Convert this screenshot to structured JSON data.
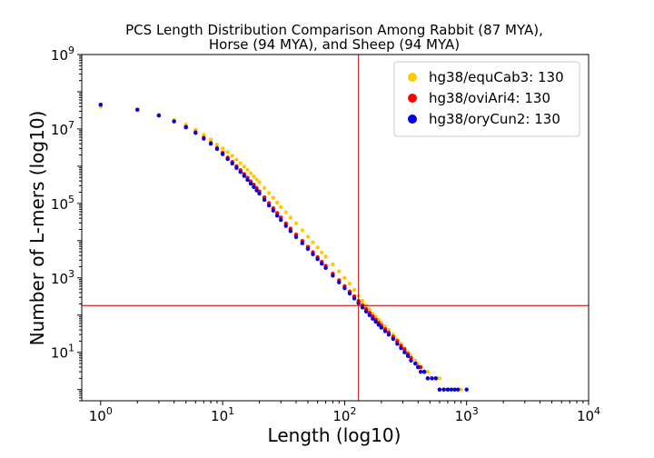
{
  "chart_data": {
    "type": "scatter",
    "title": [
      "PCS Length Distribution Comparison Among Rabbit (87 MYA),",
      "Horse (94 MYA), and Sheep (94 MYA)"
    ],
    "xlabel": "Length (log10)",
    "ylabel": "Number of L-mers (log10)",
    "x_scale": "log",
    "y_scale": "log",
    "xlim": [
      0.7,
      10000
    ],
    "ylim": [
      0.5,
      1000000000
    ],
    "x_ticks": [
      {
        "value": 1,
        "base": "10",
        "exp": "0"
      },
      {
        "value": 10,
        "base": "10",
        "exp": "1"
      },
      {
        "value": 100,
        "base": "10",
        "exp": "2"
      },
      {
        "value": 1000,
        "base": "10",
        "exp": "3"
      },
      {
        "value": 10000,
        "base": "10",
        "exp": "4"
      }
    ],
    "y_ticks": [
      {
        "value": 10,
        "base": "10",
        "exp": "1"
      },
      {
        "value": 1000,
        "base": "10",
        "exp": "3"
      },
      {
        "value": 100000,
        "base": "10",
        "exp": "5"
      },
      {
        "value": 10000000,
        "base": "10",
        "exp": "7"
      },
      {
        "value": 1000000000,
        "base": "10",
        "exp": "9"
      }
    ],
    "reference_lines": {
      "vertical_x": 130,
      "horizontal_y": 180,
      "color": "#b00000"
    },
    "legend_position": "top-right",
    "series": [
      {
        "name": "hg38/equCab3: 130",
        "color": "#ffcc00",
        "points": [
          [
            1,
            40000000
          ],
          [
            2,
            33000000
          ],
          [
            3,
            24000000
          ],
          [
            4,
            17500000
          ],
          [
            5,
            13000000
          ],
          [
            6,
            9500000
          ],
          [
            7,
            7000000
          ],
          [
            8,
            5200000
          ],
          [
            9,
            3800000
          ],
          [
            10,
            3000000
          ],
          [
            11,
            2400000
          ],
          [
            12,
            1900000
          ],
          [
            13,
            1500000
          ],
          [
            14,
            1200000
          ],
          [
            15,
            980000
          ],
          [
            16,
            800000
          ],
          [
            17,
            650000
          ],
          [
            18,
            530000
          ],
          [
            19,
            440000
          ],
          [
            20,
            370000
          ],
          [
            22,
            260000
          ],
          [
            24,
            190000
          ],
          [
            26,
            140000
          ],
          [
            28,
            105000
          ],
          [
            30,
            80000
          ],
          [
            33,
            58000
          ],
          [
            36,
            42000
          ],
          [
            40,
            29000
          ],
          [
            45,
            19000
          ],
          [
            50,
            12800
          ],
          [
            55,
            9000
          ],
          [
            60,
            6500
          ],
          [
            65,
            4800
          ],
          [
            70,
            3700
          ],
          [
            80,
            2300
          ],
          [
            90,
            1500
          ],
          [
            100,
            1000
          ],
          [
            110,
            700
          ],
          [
            120,
            480
          ],
          [
            130,
            330
          ],
          [
            140,
            240
          ],
          [
            150,
            180
          ],
          [
            160,
            140
          ],
          [
            170,
            110
          ],
          [
            180,
            90
          ],
          [
            190,
            75
          ],
          [
            200,
            62
          ],
          [
            215,
            50
          ],
          [
            230,
            40
          ],
          [
            250,
            30
          ],
          [
            270,
            22
          ],
          [
            290,
            17
          ],
          [
            310,
            13
          ],
          [
            330,
            10
          ],
          [
            350,
            8
          ],
          [
            380,
            6
          ],
          [
            400,
            5
          ],
          [
            420,
            4
          ],
          [
            450,
            3
          ],
          [
            480,
            3
          ],
          [
            520,
            2
          ],
          [
            560,
            2
          ],
          [
            600,
            2
          ],
          [
            650,
            1
          ],
          [
            700,
            1
          ],
          [
            750,
            1
          ],
          [
            800,
            1
          ],
          [
            900,
            1
          ]
        ]
      },
      {
        "name": "hg38/oviAri4: 130",
        "color": "#ff0000",
        "points": [
          [
            1,
            45000000
          ],
          [
            2,
            33000000
          ],
          [
            3,
            23000000
          ],
          [
            4,
            16000000
          ],
          [
            5,
            11500000
          ],
          [
            6,
            8200000
          ],
          [
            7,
            5800000
          ],
          [
            8,
            4200000
          ],
          [
            9,
            3100000
          ],
          [
            10,
            2300000
          ],
          [
            11,
            1700000
          ],
          [
            12,
            1300000
          ],
          [
            13,
            1000000
          ],
          [
            14,
            780000
          ],
          [
            15,
            620000
          ],
          [
            16,
            490000
          ],
          [
            17,
            390000
          ],
          [
            18,
            320000
          ],
          [
            19,
            260000
          ],
          [
            20,
            210000
          ],
          [
            22,
            145000
          ],
          [
            24,
            102000
          ],
          [
            26,
            74000
          ],
          [
            28,
            55000
          ],
          [
            30,
            42000
          ],
          [
            33,
            29000
          ],
          [
            36,
            21000
          ],
          [
            40,
            14500
          ],
          [
            45,
            9800
          ],
          [
            50,
            6800
          ],
          [
            55,
            4900
          ],
          [
            60,
            3600
          ],
          [
            65,
            2700
          ],
          [
            70,
            2100
          ],
          [
            80,
            1300
          ],
          [
            90,
            860
          ],
          [
            100,
            600
          ],
          [
            110,
            430
          ],
          [
            120,
            320
          ],
          [
            130,
            240
          ],
          [
            140,
            185
          ],
          [
            150,
            145
          ],
          [
            160,
            115
          ],
          [
            170,
            92
          ],
          [
            180,
            75
          ],
          [
            190,
            62
          ],
          [
            200,
            52
          ],
          [
            215,
            42
          ],
          [
            230,
            34
          ],
          [
            250,
            26
          ],
          [
            270,
            20
          ],
          [
            290,
            15
          ],
          [
            310,
            12
          ],
          [
            330,
            9
          ],
          [
            350,
            7
          ],
          [
            380,
            5
          ],
          [
            400,
            4
          ],
          [
            420,
            4
          ],
          [
            450,
            3
          ],
          [
            480,
            2
          ],
          [
            520,
            2
          ],
          [
            560,
            2
          ],
          [
            600,
            1
          ],
          [
            650,
            1
          ],
          [
            700,
            1
          ]
        ]
      },
      {
        "name": "hg38/oryCun2: 130",
        "color": "#0000ee",
        "points": [
          [
            1,
            45000000
          ],
          [
            2,
            33000000
          ],
          [
            3,
            23000000
          ],
          [
            4,
            16000000
          ],
          [
            5,
            11000000
          ],
          [
            6,
            7800000
          ],
          [
            7,
            5500000
          ],
          [
            8,
            4000000
          ],
          [
            9,
            2900000
          ],
          [
            10,
            2100000
          ],
          [
            11,
            1550000
          ],
          [
            12,
            1180000
          ],
          [
            13,
            900000
          ],
          [
            14,
            700000
          ],
          [
            15,
            550000
          ],
          [
            16,
            430000
          ],
          [
            17,
            340000
          ],
          [
            18,
            275000
          ],
          [
            19,
            225000
          ],
          [
            20,
            185000
          ],
          [
            22,
            125000
          ],
          [
            24,
            88000
          ],
          [
            26,
            64000
          ],
          [
            28,
            47000
          ],
          [
            30,
            36000
          ],
          [
            33,
            25000
          ],
          [
            36,
            18000
          ],
          [
            40,
            12500
          ],
          [
            45,
            8500
          ],
          [
            50,
            6000
          ],
          [
            55,
            4300
          ],
          [
            60,
            3200
          ],
          [
            65,
            2400
          ],
          [
            70,
            1850
          ],
          [
            80,
            1150
          ],
          [
            90,
            760
          ],
          [
            100,
            530
          ],
          [
            110,
            380
          ],
          [
            120,
            280
          ],
          [
            130,
            210
          ],
          [
            140,
            160
          ],
          [
            150,
            125
          ],
          [
            160,
            100
          ],
          [
            170,
            80
          ],
          [
            180,
            66
          ],
          [
            190,
            55
          ],
          [
            200,
            46
          ],
          [
            215,
            37
          ],
          [
            230,
            30
          ],
          [
            250,
            23
          ],
          [
            270,
            17
          ],
          [
            290,
            13
          ],
          [
            310,
            10
          ],
          [
            330,
            8
          ],
          [
            350,
            6
          ],
          [
            380,
            5
          ],
          [
            400,
            4
          ],
          [
            420,
            3
          ],
          [
            450,
            3
          ],
          [
            480,
            2
          ],
          [
            520,
            2
          ],
          [
            560,
            2
          ],
          [
            600,
            1
          ],
          [
            650,
            1
          ],
          [
            700,
            1
          ],
          [
            750,
            1
          ],
          [
            800,
            1
          ],
          [
            850,
            1
          ],
          [
            1000,
            1
          ]
        ]
      }
    ]
  }
}
